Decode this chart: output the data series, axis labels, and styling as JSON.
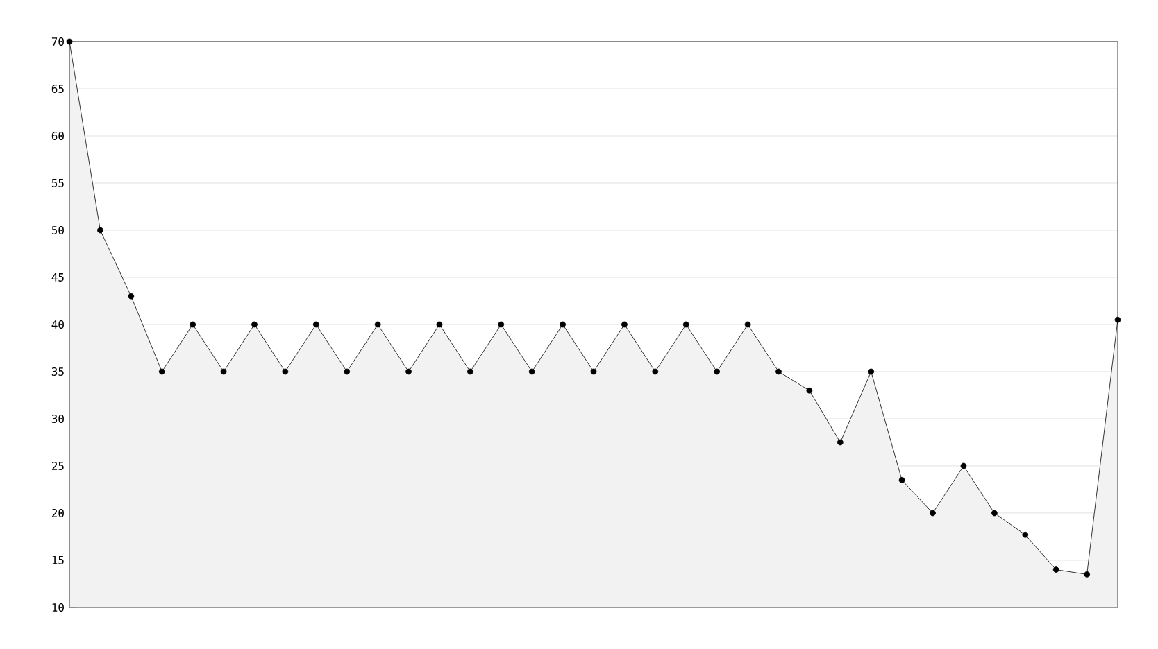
{
  "chart_data": {
    "type": "area",
    "categories": [
      null,
      null,
      null,
      null,
      null,
      null,
      null,
      null,
      null,
      null,
      null,
      null,
      null,
      null,
      null,
      null,
      null,
      null,
      null,
      null,
      null,
      null,
      null,
      null,
      null,
      null,
      null,
      null,
      null,
      null,
      null,
      null,
      null,
      null,
      null
    ],
    "series": [
      {
        "color": "#000000",
        "values": [
          70,
          50,
          43,
          35,
          40,
          35,
          40,
          35,
          40,
          35,
          40,
          35,
          40,
          35,
          40,
          35,
          40,
          35,
          40,
          35,
          40,
          35,
          40,
          35,
          33,
          27.5,
          35,
          23.5,
          20,
          25,
          20,
          17.7,
          14,
          13.5,
          40.5
        ]
      }
    ],
    "ylim": [
      10,
      70
    ],
    "yticks": [
      10,
      15,
      20,
      25,
      30,
      35,
      40,
      45,
      50,
      55,
      60,
      65,
      70
    ],
    "grid": "y",
    "marker": "circle",
    "line_style": "solid"
  }
}
